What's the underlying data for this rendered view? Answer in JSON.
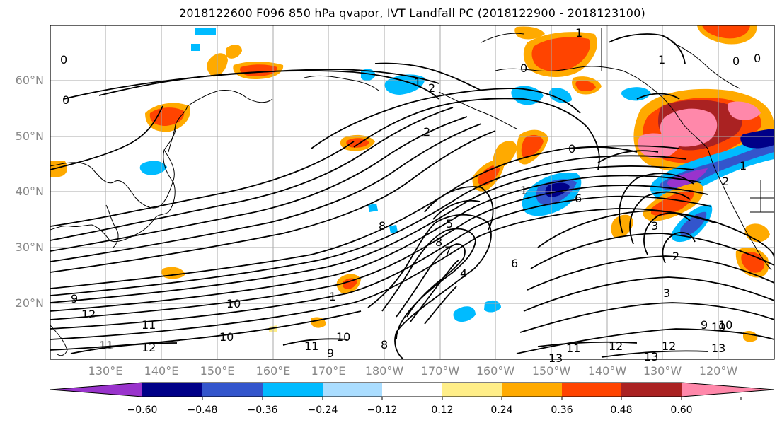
{
  "title": "2018122600 F096 850 hPa qvapor, IVT Landfall PC (2018122900 - 2018123100)",
  "lat_labels": [
    "60°N",
    "50°N",
    "40°N",
    "30°N",
    "20°N"
  ],
  "lon_labels": [
    "130°E",
    "140°E",
    "150°E",
    "160°E",
    "170°E",
    "180°W",
    "170°W",
    "160°W",
    "150°W",
    "140°W",
    "130°W",
    "120°W"
  ],
  "colorbar": {
    "colors": [
      "#9933cc",
      "#000088",
      "#3355cc",
      "#00bbff",
      "#aaddff",
      "#ffffff",
      "#ffee88",
      "#ffaa00",
      "#ff4400",
      "#aa2222",
      "#ff88aa"
    ],
    "tick_labels": [
      "−0.60",
      "−0.48",
      "−0.36",
      "−0.24",
      "−0.12",
      "0.12",
      "0.24",
      "0.36",
      "0.48",
      "0.60"
    ]
  },
  "contour_labels": [
    "0",
    "0",
    "2",
    "2",
    "1",
    "0",
    "1",
    "0",
    "1",
    "1",
    "9",
    "12",
    "10",
    "10",
    "11",
    "11",
    "12",
    "10",
    "8",
    "8",
    "9",
    "1",
    "8",
    "7",
    "6",
    "4",
    "5",
    "3",
    "2",
    "2",
    "1",
    "6",
    "0",
    "10",
    "11",
    "12",
    "13",
    "13",
    "12",
    "3",
    "9",
    "10",
    "0",
    "11",
    "13"
  ]
}
